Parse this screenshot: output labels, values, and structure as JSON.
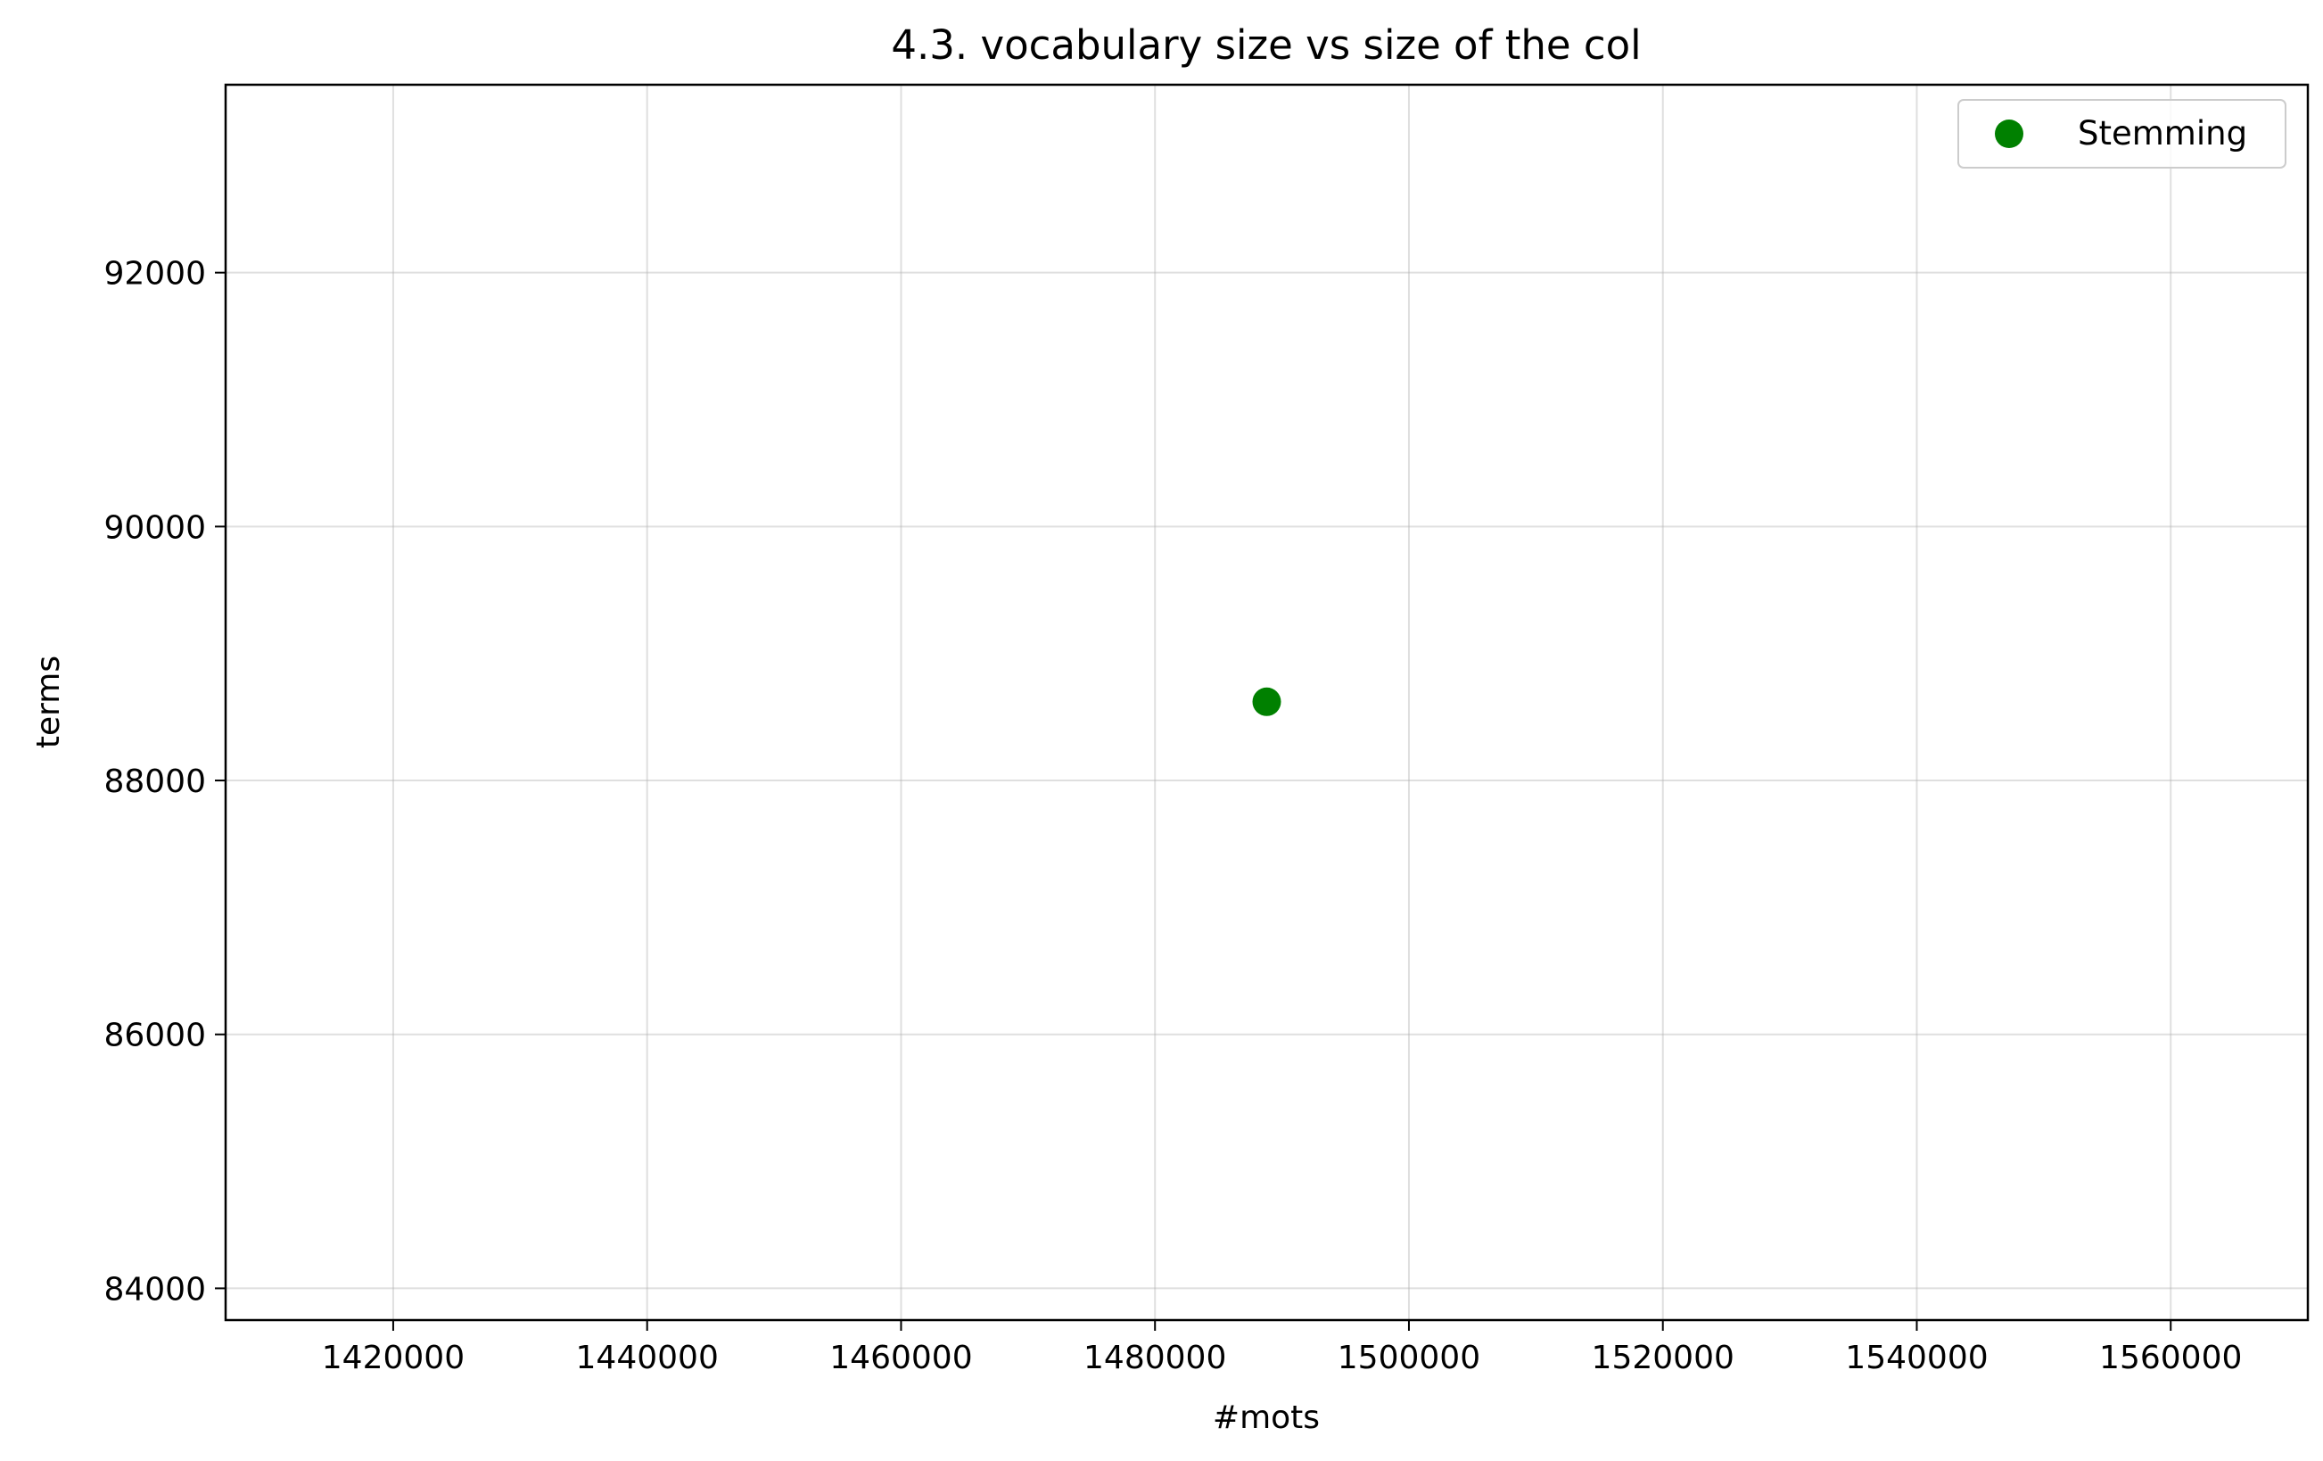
{
  "chart_data": {
    "type": "scatter",
    "title": "4.3.  vocabulary size vs size of the col",
    "xlabel": "#mots",
    "ylabel": "terms",
    "xlim": [
      1406800,
      1570800
    ],
    "ylim": [
      83750,
      93480
    ],
    "xticks": [
      1420000,
      1440000,
      1460000,
      1480000,
      1500000,
      1520000,
      1540000,
      1560000
    ],
    "yticks": [
      84000,
      86000,
      88000,
      90000,
      92000
    ],
    "xtick_labels": [
      "1420000",
      "1440000",
      "1460000",
      "1480000",
      "1500000",
      "1520000",
      "1540000",
      "1560000"
    ],
    "ytick_labels": [
      "84000",
      "86000",
      "88000",
      "90000",
      "92000"
    ],
    "grid": true,
    "legend_position": "top-right",
    "series": [
      {
        "name": "Stemming",
        "color": "#008000",
        "marker": "circle",
        "points": [
          {
            "x": 1488800,
            "y": 88620
          }
        ]
      }
    ]
  }
}
